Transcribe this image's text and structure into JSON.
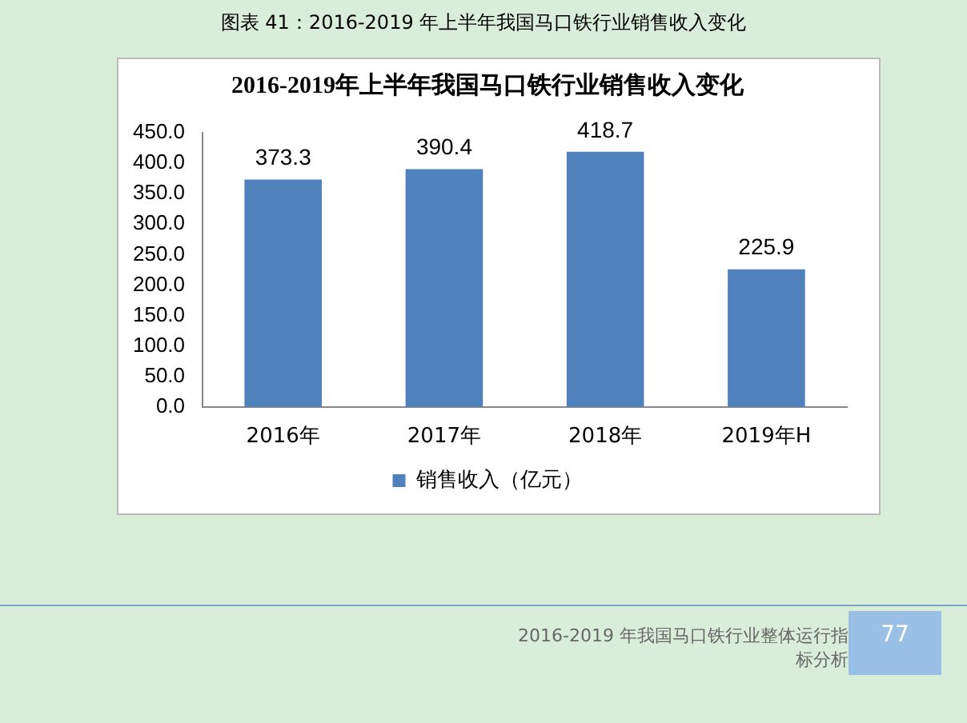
{
  "chart_data": {
    "type": "bar",
    "title": "2016-2019年上半年我国马口铁行业销售收入变化",
    "subtitle": "图表 41：2016-2019 年上半年我国马口铁行业销售收入变化",
    "categories": [
      "2016年",
      "2017年",
      "2018年",
      "2019年H"
    ],
    "series": [
      {
        "name": "销售收入（亿元）",
        "color": "#4f81bd",
        "values": [
          373.3,
          390.4,
          418.7,
          225.9
        ]
      }
    ],
    "ylim": [
      0,
      450
    ],
    "yticks": [
      {
        "value": 0,
        "label": "0.0"
      },
      {
        "value": 50,
        "label": "50.0"
      },
      {
        "value": 100,
        "label": "100.0"
      },
      {
        "value": 150,
        "label": "150.0"
      },
      {
        "value": 200,
        "label": "200.0"
      },
      {
        "value": 250,
        "label": "250.0"
      },
      {
        "value": 300,
        "label": "300.0"
      },
      {
        "value": 350,
        "label": "350.0"
      },
      {
        "value": 400,
        "label": "400.0"
      },
      {
        "value": 450,
        "label": "450.0"
      }
    ],
    "grid": false,
    "legend": "bottom",
    "data_labels": true,
    "annotations": [
      "2016-2019 年我国马口铁行业整体运行指标分析",
      "77"
    ]
  }
}
